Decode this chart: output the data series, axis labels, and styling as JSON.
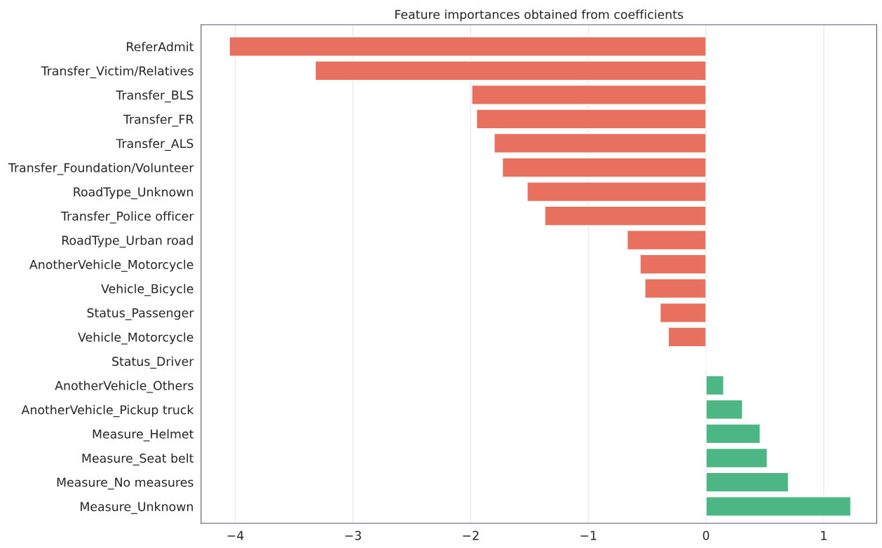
{
  "chart_data": {
    "type": "bar",
    "orientation": "horizontal",
    "title": "Feature importances obtained from coefficients",
    "categories": [
      "ReferAdmit",
      "Transfer_Victim/Relatives",
      "Transfer_BLS",
      "Transfer_FR",
      "Transfer_ALS",
      "Transfer_Foundation/Volunteer",
      "RoadType_Unknown",
      "Transfer_Police officer",
      "RoadType_Urban road",
      "AnotherVehicle_Motorcycle",
      "Vehicle_Bicycle",
      "Status_Passenger",
      "Vehicle_Motorcycle",
      "Status_Driver",
      "AnotherVehicle_Others",
      "AnotherVehicle_Pickup truck",
      "Measure_Helmet",
      "Measure_Seat belt",
      "Measure_No measures",
      "Measure_Unknown"
    ],
    "values": [
      -4.05,
      -3.32,
      -1.99,
      -1.95,
      -1.8,
      -1.73,
      -1.52,
      -1.37,
      -0.67,
      -0.56,
      -0.52,
      -0.39,
      -0.32,
      0,
      0.15,
      0.31,
      0.46,
      0.52,
      0.7,
      1.23
    ],
    "colors": [
      "#e8705f",
      "#e8705f",
      "#e8705f",
      "#e8705f",
      "#e8705f",
      "#e8705f",
      "#e8705f",
      "#e8705f",
      "#e8705f",
      "#e8705f",
      "#e8705f",
      "#e8705f",
      "#e8705f",
      null,
      "#4cb784",
      "#4cb784",
      "#4cb784",
      "#4cb784",
      "#4cb784",
      "#4cb784"
    ],
    "xlim": [
      -4.29,
      1.45
    ],
    "xticks": [
      {
        "value": -4,
        "label": "−4"
      },
      {
        "value": -3,
        "label": "−3"
      },
      {
        "value": -2,
        "label": "−2"
      },
      {
        "value": -1,
        "label": "−1"
      },
      0,
      1
    ],
    "grid": "x"
  }
}
